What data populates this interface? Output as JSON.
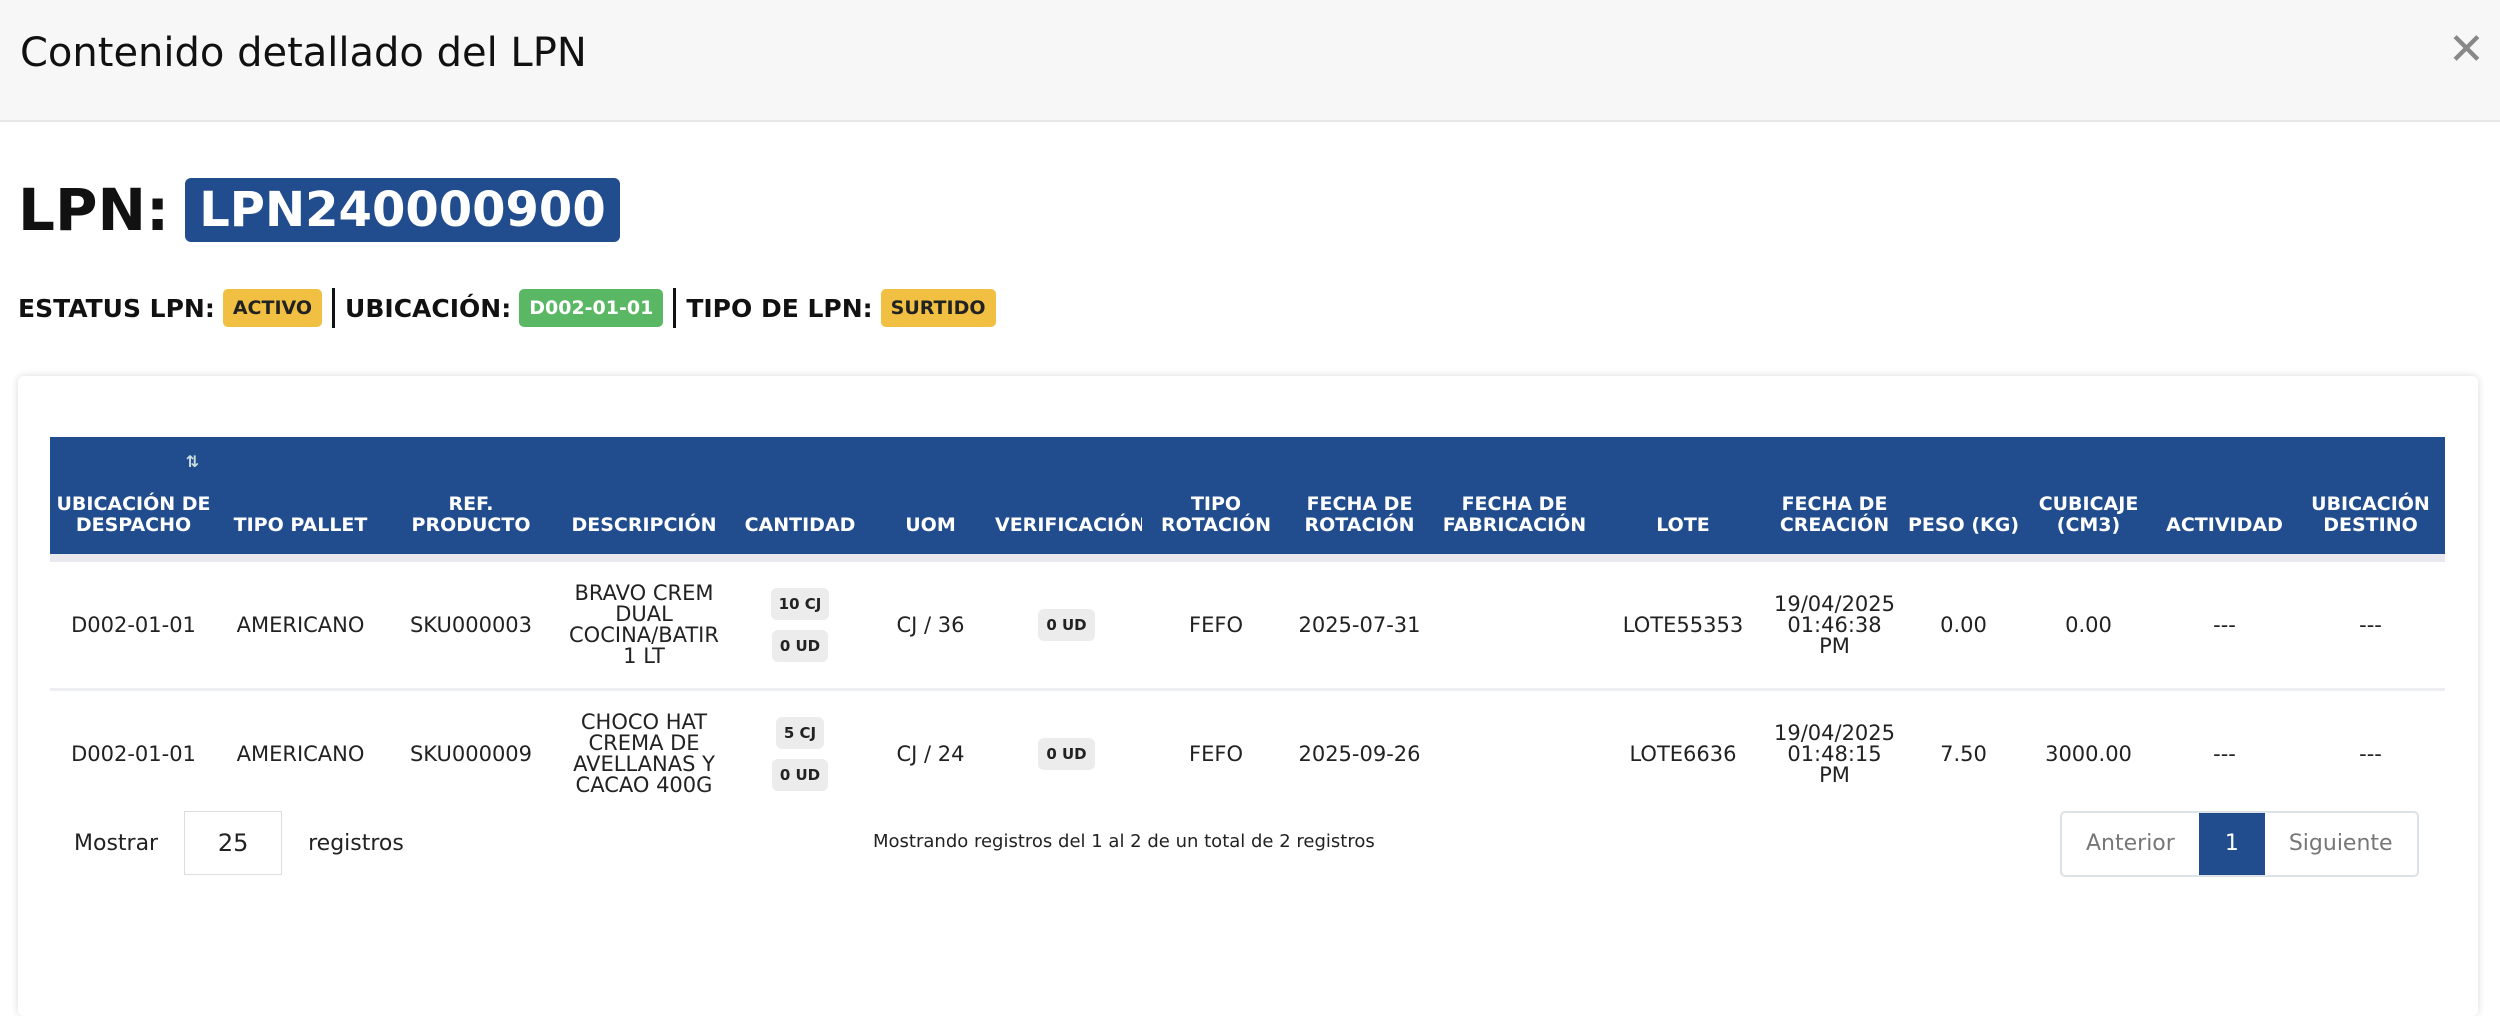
{
  "header": {
    "title": "Contenido detallado del LPN",
    "close_icon": "close-icon"
  },
  "lpn": {
    "label": "LPN:",
    "value": "LPN240000900"
  },
  "status": {
    "estatus_label": "ESTATUS LPN:",
    "estatus_value": "ACTIVO",
    "ubicacion_label": "UBICACIÓN:",
    "ubicacion_value": "D002-01-01",
    "tipo_label": "TIPO DE LPN:",
    "tipo_value": "SURTIDO"
  },
  "colors": {
    "primary": "#214d8f",
    "yellow": "#f1c043",
    "green": "#5ab865"
  },
  "table": {
    "columns": [
      "UBICACIÓN DE DESPACHO",
      "TIPO PALLET",
      "REF. PRODUCTO",
      "DESCRIPCIÓN",
      "CANTIDAD",
      "UOM",
      "VERIFICACIÓN",
      "TIPO ROTACIÓN",
      "FECHA DE ROTACIÓN",
      "FECHA DE FABRICACIÓN",
      "LOTE",
      "FECHA DE CREACIÓN",
      "PESO (KG)",
      "CUBICAJE (CM3)",
      "ACTIVIDAD",
      "UBICACIÓN DESTINO"
    ],
    "rows": [
      {
        "ubicacion": "D002-01-01",
        "tipo_pallet": "AMERICANO",
        "ref": "SKU000003",
        "descripcion": "BRAVO CREM DUAL COCINA/BATIR 1 LT",
        "cantidad_cj": "10 CJ",
        "cantidad_ud": "0 UD",
        "uom": "CJ / 36",
        "verificacion": "0 UD",
        "tipo_rotacion": "FEFO",
        "fecha_rotacion": "2025-07-31",
        "fecha_fabricacion": "",
        "lote": "LOTE55353",
        "fecha_creacion": "19/04/2025 01:46:38 PM",
        "peso": "0.00",
        "cubicaje": "0.00",
        "actividad": "---",
        "destino": "---"
      },
      {
        "ubicacion": "D002-01-01",
        "tipo_pallet": "AMERICANO",
        "ref": "SKU000009",
        "descripcion": "CHOCO HAT CREMA DE AVELLANAS Y CACAO 400G",
        "cantidad_cj": "5 CJ",
        "cantidad_ud": "0 UD",
        "uom": "CJ / 24",
        "verificacion": "0 UD",
        "tipo_rotacion": "FEFO",
        "fecha_rotacion": "2025-09-26",
        "fecha_fabricacion": "",
        "lote": "LOTE6636",
        "fecha_creacion": "19/04/2025 01:48:15 PM",
        "peso": "7.50",
        "cubicaje": "3000.00",
        "actividad": "---",
        "destino": "---"
      }
    ]
  },
  "footer": {
    "show_label": "Mostrar",
    "page_size": "25",
    "records_label": "registros",
    "info": "Mostrando registros del 1 al 2 de un total de 2 registros",
    "prev": "Anterior",
    "page": "1",
    "next": "Siguiente"
  }
}
